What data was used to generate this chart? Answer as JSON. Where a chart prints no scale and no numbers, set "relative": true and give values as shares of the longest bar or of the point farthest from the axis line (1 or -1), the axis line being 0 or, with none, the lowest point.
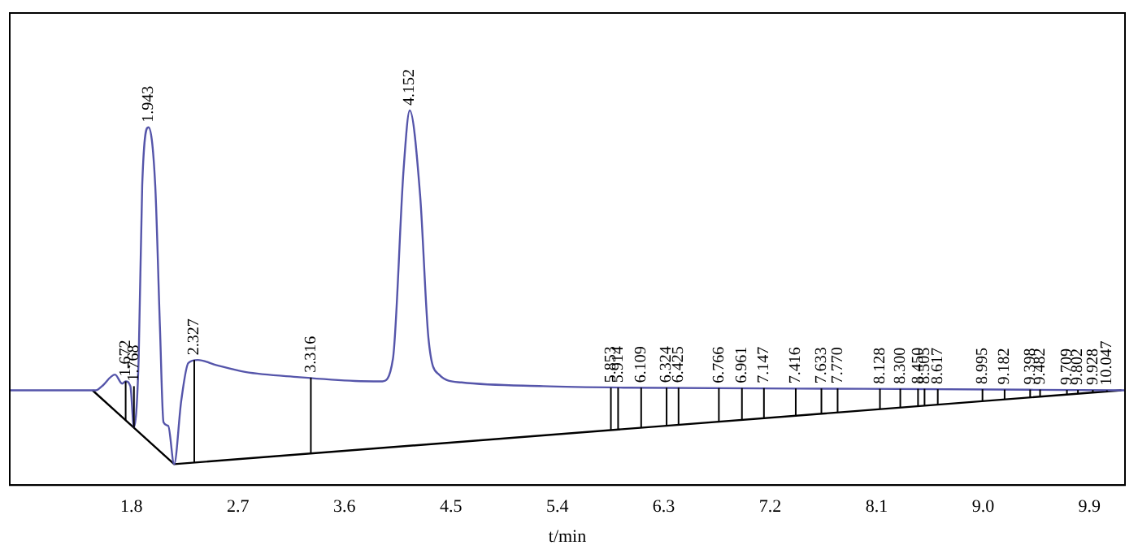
{
  "chart_data": {
    "type": "line",
    "xlabel": "t/min",
    "relative": true,
    "tick_labels": "x",
    "grid": false,
    "legend": false,
    "marker": "none",
    "line_style": "solid",
    "xlim": [
      0.77,
      10.2
    ],
    "xticks": [
      1.8,
      2.7,
      3.6,
      4.5,
      5.4,
      6.3,
      7.2,
      8.1,
      {
        "value": 9,
        "label": "9.0"
      },
      9.9
    ],
    "series": [
      {
        "color": "#5555aa",
        "x": [
          0.77,
          1.5,
          1.55,
          1.66,
          1.72,
          1.75,
          1.79,
          1.82,
          1.86,
          1.89,
          1.943,
          2.0,
          2.04,
          2.07,
          2.11,
          2.16,
          2.22,
          2.28,
          2.36,
          2.52,
          2.76,
          3.22,
          3.69,
          3.92,
          4.01,
          4.1,
          4.152,
          4.24,
          4.31,
          4.4,
          4.59,
          5.28,
          6.0,
          8.0,
          10.2
        ],
        "values": [
          0.253,
          0.253,
          0.264,
          0.295,
          0.271,
          0.277,
          0.264,
          0.155,
          0.337,
          0.8,
          0.955,
          0.8,
          0.421,
          0.168,
          0.158,
          0.056,
          0.225,
          0.326,
          0.334,
          0.32,
          0.302,
          0.288,
          0.278,
          0.277,
          0.337,
          0.842,
          1,
          0.773,
          0.393,
          0.295,
          0.274,
          0.264,
          0.26,
          0.257,
          0.253
        ]
      },
      {
        "color": "#000000",
        "x": [
          1.47,
          2.16,
          10.17
        ],
        "values": [
          0.253,
          0.056,
          0.253
        ]
      }
    ],
    "annotations": [
      {
        "text": "1.672",
        "x": 1.75,
        "y": 0.277
      },
      {
        "text": "1.768",
        "x": 1.82,
        "y": 0.264
      },
      {
        "text": "1.943",
        "x": 1.943,
        "y": 0.955
      },
      {
        "text": "2.327",
        "x": 2.33,
        "y": 0.334
      },
      {
        "text": "3.316",
        "x": 3.316,
        "y": 0.287
      },
      {
        "text": "4.152",
        "x": 4.152,
        "y": 1
      },
      {
        "text": "5.853",
        "x": 5.853,
        "y": 0.26
      },
      {
        "text": "5.914",
        "x": 5.914,
        "y": 0.26
      },
      {
        "text": "6.109",
        "x": 6.109,
        "y": 0.26
      },
      {
        "text": "6.324",
        "x": 6.324,
        "y": 0.26
      },
      {
        "text": "6.425",
        "x": 6.425,
        "y": 0.26
      },
      {
        "text": "6.766",
        "x": 6.766,
        "y": 0.259
      },
      {
        "text": "6.961",
        "x": 6.961,
        "y": 0.259
      },
      {
        "text": "7.147",
        "x": 7.147,
        "y": 0.259
      },
      {
        "text": "7.416",
        "x": 7.416,
        "y": 0.258
      },
      {
        "text": "7.633",
        "x": 7.633,
        "y": 0.258
      },
      {
        "text": "7.770",
        "x": 7.77,
        "y": 0.258
      },
      {
        "text": "8.128",
        "x": 8.128,
        "y": 0.257
      },
      {
        "text": "8.300",
        "x": 8.3,
        "y": 0.257
      },
      {
        "text": "8.450",
        "x": 8.45,
        "y": 0.257
      },
      {
        "text": "8.505",
        "x": 8.505,
        "y": 0.257
      },
      {
        "text": "8.617",
        "x": 8.617,
        "y": 0.256
      },
      {
        "text": "8.995",
        "x": 8.995,
        "y": 0.256
      },
      {
        "text": "9.182",
        "x": 9.182,
        "y": 0.255
      },
      {
        "text": "9.398",
        "x": 9.398,
        "y": 0.255
      },
      {
        "text": "9.482",
        "x": 9.482,
        "y": 0.255
      },
      {
        "text": "9.709",
        "x": 9.709,
        "y": 0.254
      },
      {
        "text": "9.802",
        "x": 9.802,
        "y": 0.254
      },
      {
        "text": "9.928",
        "x": 9.928,
        "y": 0.254
      },
      {
        "text": "10.047",
        "x": 10.047,
        "y": 0.253
      }
    ]
  }
}
